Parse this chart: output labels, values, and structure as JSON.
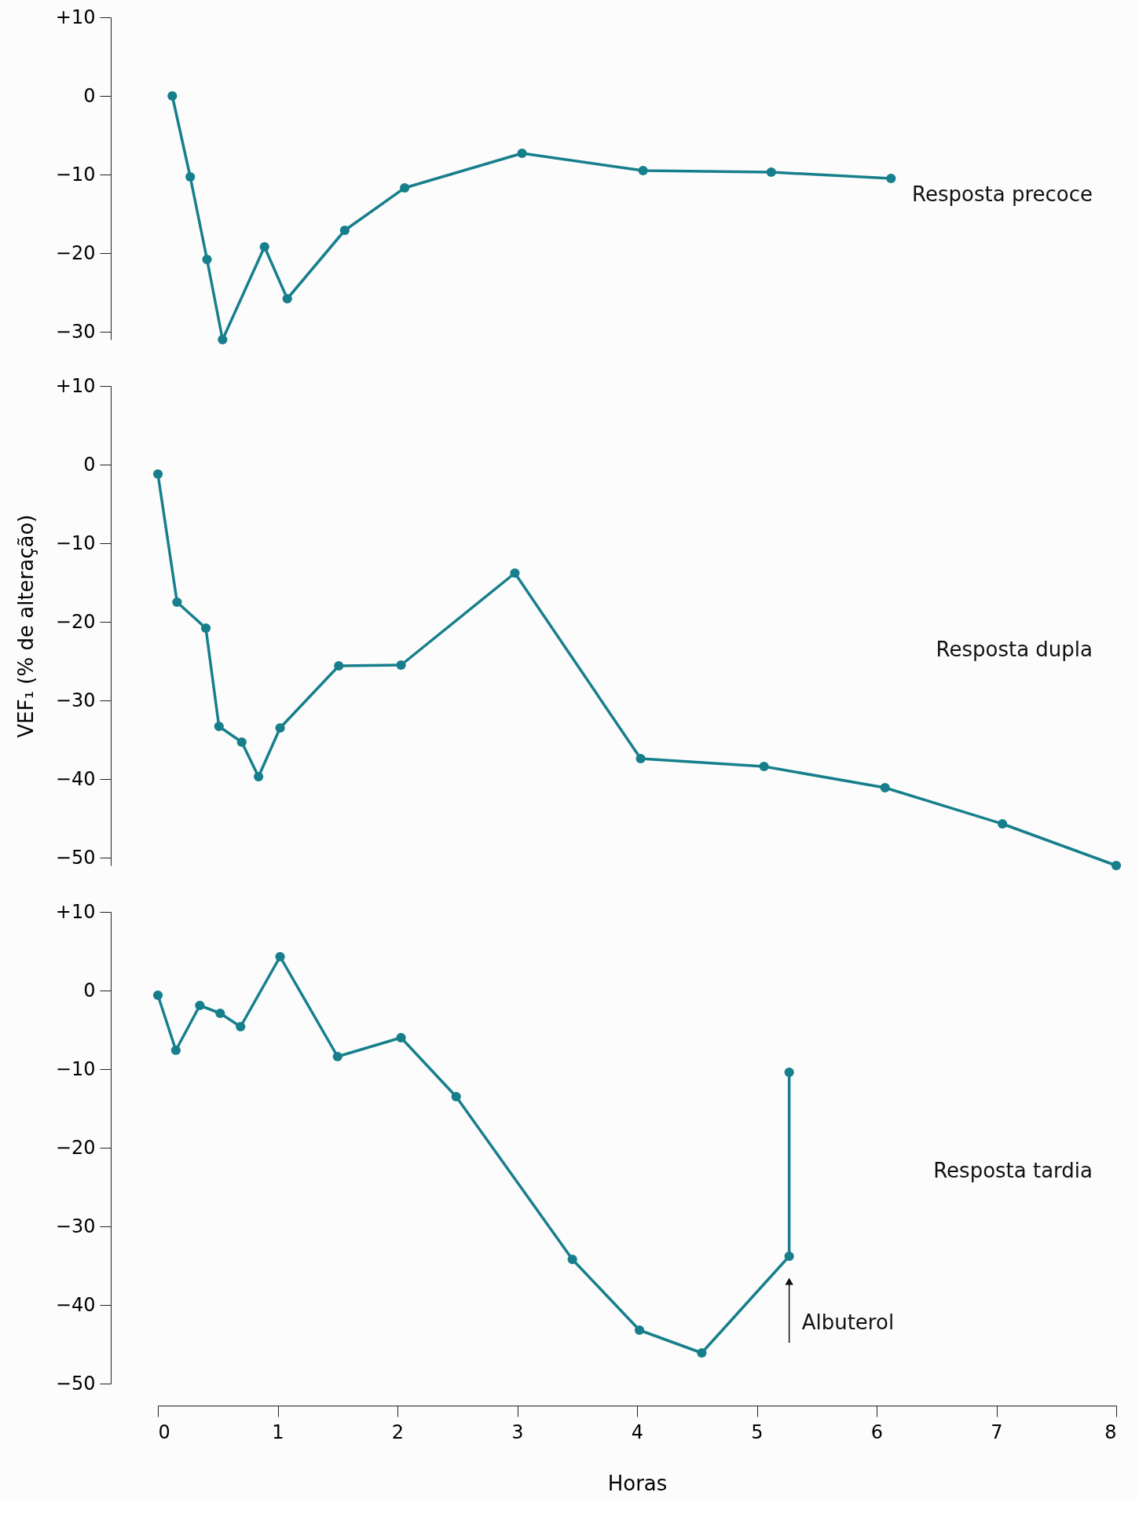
{
  "chart_data": [
    {
      "type": "line",
      "x": [
        0.12,
        0.27,
        0.41,
        0.54,
        0.89,
        1.08,
        1.56,
        2.06,
        3.04,
        4.05,
        5.12,
        6.12
      ],
      "series": [
        {
          "color": "#177f8c",
          "values": [
            0,
            -10.3,
            -20.8,
            -31,
            -19.2,
            -25.8,
            -17.1,
            -11.7,
            -7.3,
            -9.5,
            -9.7,
            -10.5
          ]
        }
      ],
      "xlim": [
        0,
        8
      ],
      "ylim": [
        -31,
        10
      ],
      "yticks": [
        {
          "value": 10,
          "label": "+10"
        },
        0,
        {
          "value": -10,
          "label": "−10"
        },
        {
          "value": -20,
          "label": "−20"
        },
        {
          "value": -30,
          "label": "−30"
        }
      ],
      "annotations": [
        "Resposta precoce"
      ],
      "tick_labels": "y",
      "grid": false,
      "marker": "circle",
      "line_style": "solid"
    },
    {
      "type": "line",
      "x": [
        0,
        0.16,
        0.4,
        0.51,
        0.7,
        0.84,
        1.02,
        1.51,
        2.03,
        2.98,
        4.03,
        5.06,
        6.07,
        7.05,
        8
      ],
      "series": [
        {
          "color": "#177f8c",
          "values": [
            -1.2,
            -17.5,
            -20.8,
            -33.3,
            -35.3,
            -39.7,
            -33.5,
            -25.6,
            -25.5,
            -13.8,
            -37.4,
            -38.4,
            -41.1,
            -45.7,
            -51
          ]
        }
      ],
      "xlim": [
        0,
        8
      ],
      "ylim": [
        -51,
        10
      ],
      "ylabel": "VEF₁ (% de alteração)",
      "yticks": [
        {
          "value": 10,
          "label": "+10"
        },
        0,
        {
          "value": -10,
          "label": "−10"
        },
        {
          "value": -20,
          "label": "−20"
        },
        {
          "value": -30,
          "label": "−30"
        },
        {
          "value": -40,
          "label": "−40"
        },
        {
          "value": -50,
          "label": "−50"
        }
      ],
      "annotations": [
        "Resposta dupla"
      ],
      "tick_labels": "y",
      "grid": false,
      "marker": "circle",
      "line_style": "solid"
    },
    {
      "type": "line",
      "x": [
        0,
        0.15,
        0.35,
        0.52,
        0.69,
        1.02,
        1.5,
        2.03,
        2.49,
        3.46,
        4.02,
        4.54,
        5.27,
        5.27
      ],
      "series": [
        {
          "color": "#177f8c",
          "values": [
            -0.6,
            -7.6,
            -1.9,
            -2.9,
            -4.6,
            4.3,
            -8.4,
            -6.0,
            -13.5,
            -34.2,
            -43.2,
            -46.1,
            -33.8,
            -10.4
          ]
        }
      ],
      "xlim": [
        0,
        8
      ],
      "ylim": [
        -50,
        10
      ],
      "xlabel": "Horas",
      "xticks": [
        0,
        1,
        2,
        3,
        4,
        5,
        6,
        7,
        8
      ],
      "yticks": [
        {
          "value": 10,
          "label": "+10"
        },
        0,
        {
          "value": -10,
          "label": "−10"
        },
        {
          "value": -20,
          "label": "−20"
        },
        {
          "value": -30,
          "label": "−30"
        },
        {
          "value": -40,
          "label": "−40"
        },
        {
          "value": -50,
          "label": "−50"
        }
      ],
      "annotations": [
        "Resposta tardia",
        {
          "text": "Albuterol",
          "x": 5.27,
          "y": -33.8
        }
      ],
      "grid": false,
      "marker": "circle",
      "line_style": "solid"
    }
  ]
}
